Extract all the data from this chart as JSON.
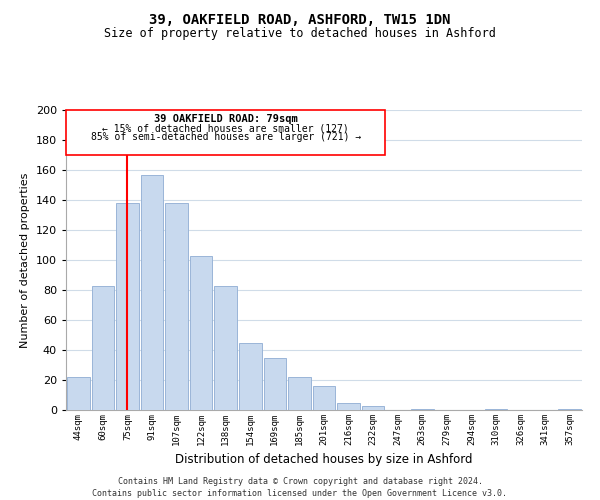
{
  "title": "39, OAKFIELD ROAD, ASHFORD, TW15 1DN",
  "subtitle": "Size of property relative to detached houses in Ashford",
  "xlabel": "Distribution of detached houses by size in Ashford",
  "ylabel": "Number of detached properties",
  "bar_color": "#c8d9ee",
  "bar_edge_color": "#9ab5d8",
  "bin_labels": [
    "44sqm",
    "60sqm",
    "75sqm",
    "91sqm",
    "107sqm",
    "122sqm",
    "138sqm",
    "154sqm",
    "169sqm",
    "185sqm",
    "201sqm",
    "216sqm",
    "232sqm",
    "247sqm",
    "263sqm",
    "279sqm",
    "294sqm",
    "310sqm",
    "326sqm",
    "341sqm",
    "357sqm"
  ],
  "bar_heights": [
    22,
    83,
    138,
    157,
    138,
    103,
    83,
    45,
    35,
    22,
    16,
    5,
    3,
    0,
    1,
    0,
    0,
    1,
    0,
    0,
    1
  ],
  "ylim": [
    0,
    200
  ],
  "yticks": [
    0,
    20,
    40,
    60,
    80,
    100,
    120,
    140,
    160,
    180,
    200
  ],
  "redline_bin": 2,
  "annotation_title": "39 OAKFIELD ROAD: 79sqm",
  "annotation_line1": "← 15% of detached houses are smaller (127)",
  "annotation_line2": "85% of semi-detached houses are larger (721) →",
  "footnote1": "Contains HM Land Registry data © Crown copyright and database right 2024.",
  "footnote2": "Contains public sector information licensed under the Open Government Licence v3.0.",
  "background_color": "#ffffff",
  "grid_color": "#d0dce8"
}
